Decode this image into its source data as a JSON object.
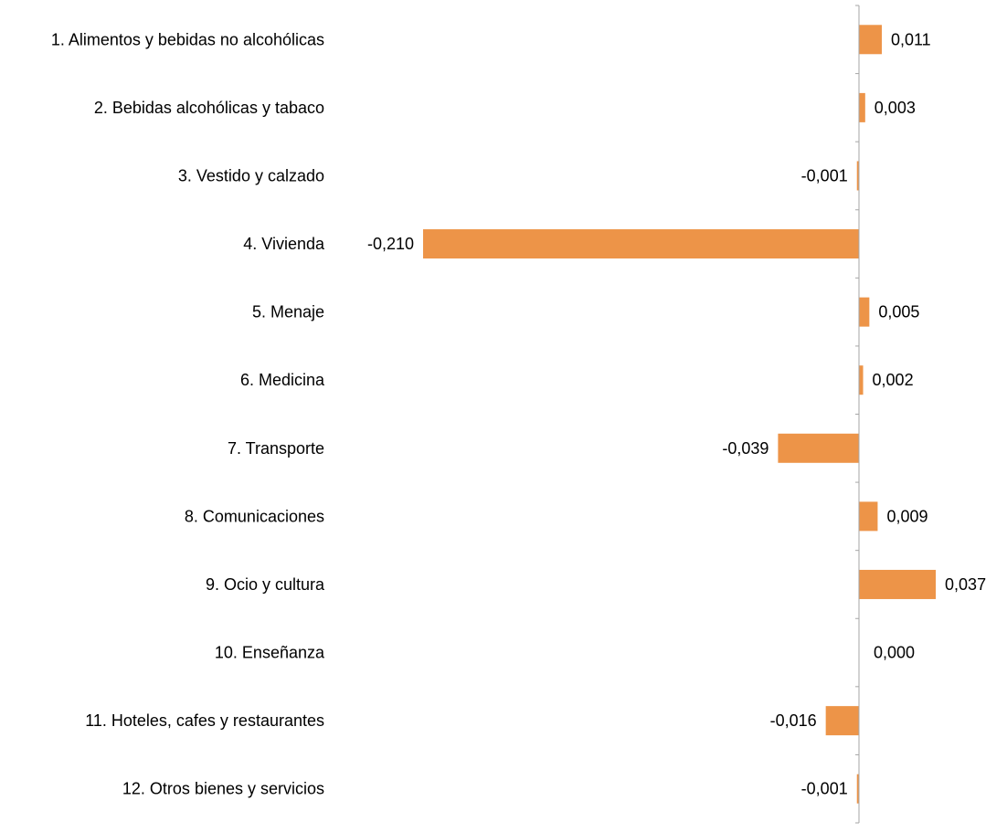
{
  "chart_data": {
    "type": "bar",
    "orientation": "horizontal",
    "categories": [
      "1. Alimentos y bebidas no alcohólicas",
      "2. Bebidas alcohólicas y tabaco",
      "3. Vestido y calzado",
      "4. Vivienda",
      "5. Menaje",
      "6. Medicina",
      "7. Transporte",
      "8. Comunicaciones",
      "9. Ocio y cultura",
      "10. Enseñanza",
      "11. Hoteles, cafes y restaurantes",
      "12. Otros bienes y servicios"
    ],
    "values": [
      0.011,
      0.003,
      -0.001,
      -0.21,
      0.005,
      0.002,
      -0.039,
      0.009,
      0.037,
      0.0,
      -0.016,
      -0.001
    ],
    "value_labels": [
      "0,011",
      "0,003",
      "-0,001",
      "-0,210",
      "0,005",
      "0,002",
      "-0,039",
      "0,009",
      "0,037",
      "0,000",
      "-0,016",
      "-0,001"
    ],
    "bar_color": "#ED9448",
    "axis_color": "#A6A6A6",
    "grid": false,
    "legend": "none",
    "title": "",
    "xlabel": "",
    "ylabel": ""
  }
}
